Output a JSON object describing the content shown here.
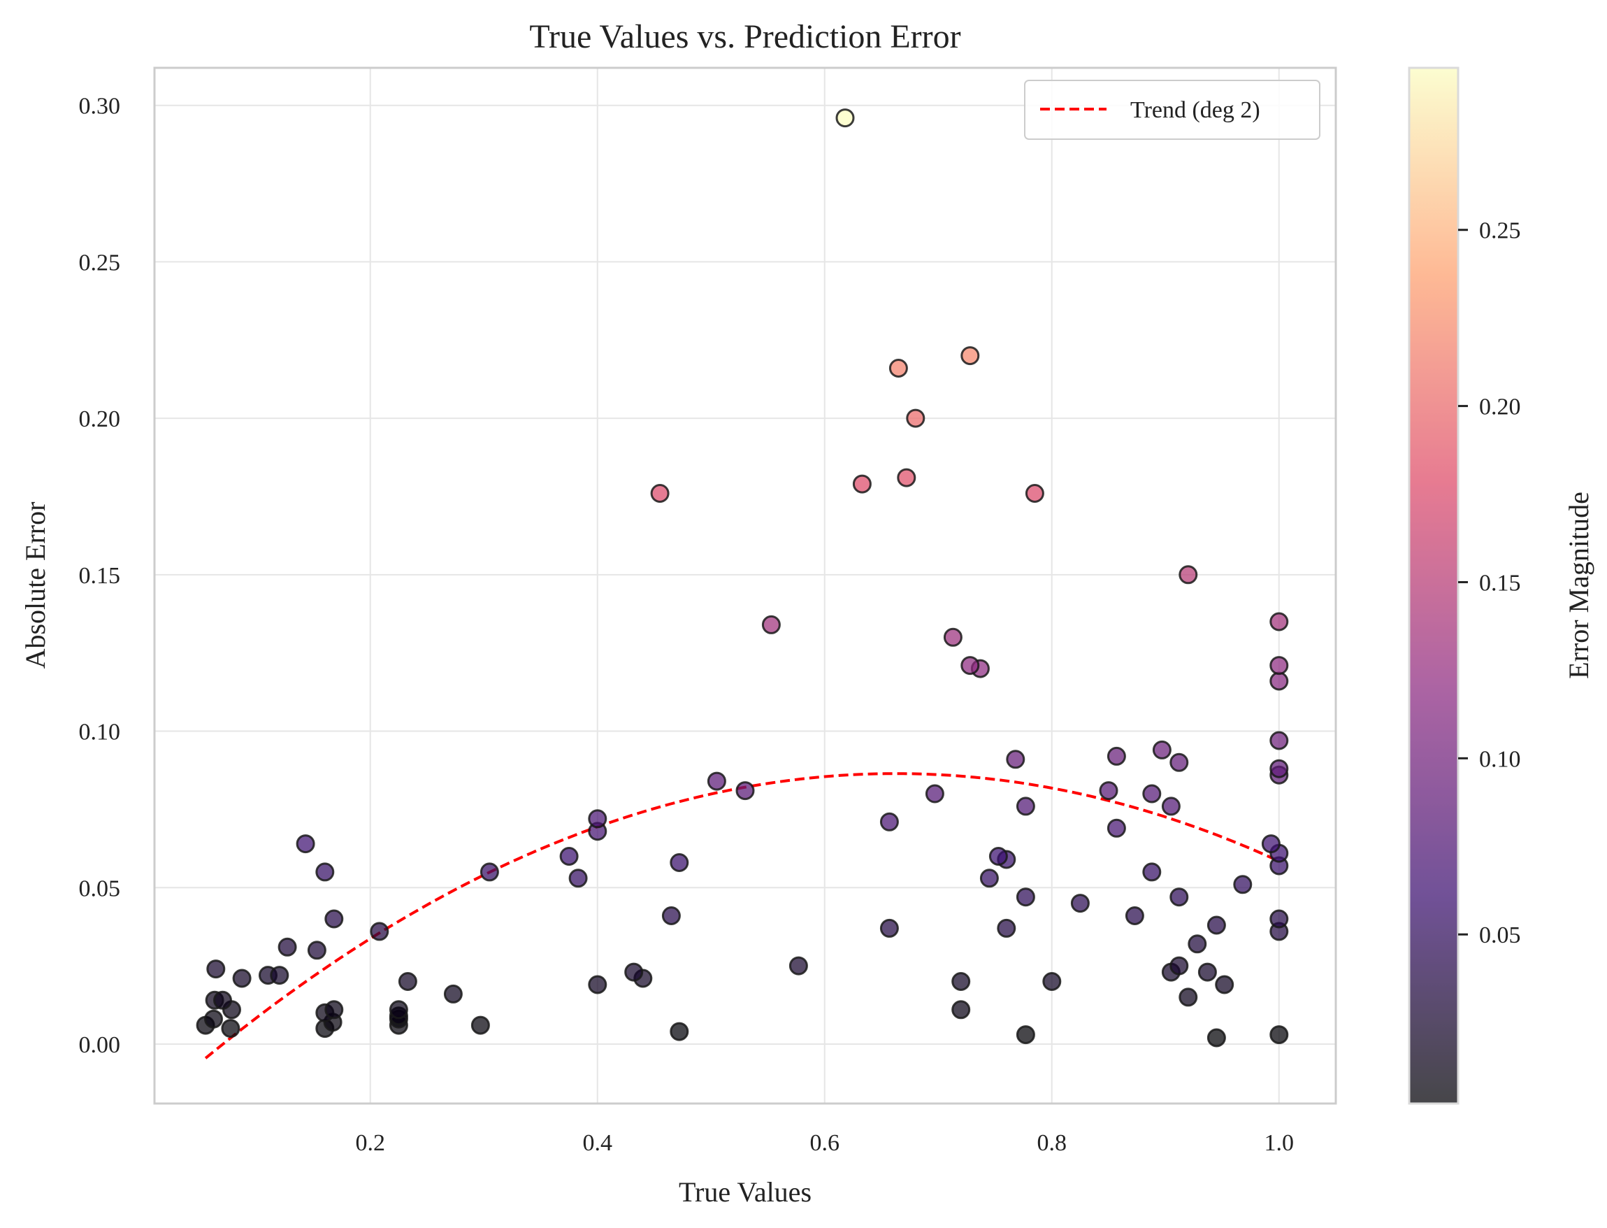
{
  "chart_data": {
    "type": "scatter",
    "title": "True Values vs. Prediction Error",
    "xlabel": "True Values",
    "ylabel": "Absolute Error",
    "xlim": [
      0.01,
      1.05
    ],
    "ylim": [
      -0.019,
      0.312
    ],
    "xticks": [
      0.2,
      0.4,
      0.6,
      0.8,
      1.0
    ],
    "xtick_labels": [
      "0.2",
      "0.4",
      "0.6",
      "0.8",
      "1.0"
    ],
    "yticks": [
      0.0,
      0.05,
      0.1,
      0.15,
      0.2,
      0.25,
      0.3
    ],
    "ytick_labels": [
      "0.00",
      "0.05",
      "0.10",
      "0.15",
      "0.20",
      "0.25",
      "0.30"
    ],
    "grid": true,
    "legend": {
      "position": "top-right",
      "entries": [
        "Trend (deg 2)"
      ]
    },
    "colorbar": {
      "label": "Error Magnitude",
      "range": [
        0.002,
        0.296
      ],
      "ticks": [
        0.05,
        0.1,
        0.15,
        0.2,
        0.25
      ],
      "tick_labels": [
        "0.05",
        "0.10",
        "0.15",
        "0.20",
        "0.25"
      ],
      "colormap": [
        "#000004",
        "#3b0f70",
        "#8c2981",
        "#de4968",
        "#fe9f6d",
        "#fcfdbf"
      ]
    },
    "trend": {
      "name": "Trend (deg 2)",
      "color": "#ff0000",
      "x_range": [
        0.055,
        1.0
      ],
      "x": [
        0.055,
        0.15,
        0.25,
        0.35,
        0.45,
        0.55,
        0.65,
        0.75,
        0.85,
        0.95,
        1.0
      ],
      "y": [
        -0.004,
        0.022,
        0.044,
        0.061,
        0.075,
        0.084,
        0.087,
        0.085,
        0.078,
        0.066,
        0.058
      ]
    },
    "points": [
      {
        "x": 0.055,
        "y": 0.006
      },
      {
        "x": 0.062,
        "y": 0.008
      },
      {
        "x": 0.063,
        "y": 0.014
      },
      {
        "x": 0.064,
        "y": 0.024
      },
      {
        "x": 0.07,
        "y": 0.014
      },
      {
        "x": 0.077,
        "y": 0.005
      },
      {
        "x": 0.078,
        "y": 0.011
      },
      {
        "x": 0.087,
        "y": 0.021
      },
      {
        "x": 0.11,
        "y": 0.022
      },
      {
        "x": 0.12,
        "y": 0.022
      },
      {
        "x": 0.127,
        "y": 0.031
      },
      {
        "x": 0.143,
        "y": 0.064
      },
      {
        "x": 0.153,
        "y": 0.03
      },
      {
        "x": 0.16,
        "y": 0.055
      },
      {
        "x": 0.16,
        "y": 0.01
      },
      {
        "x": 0.16,
        "y": 0.005
      },
      {
        "x": 0.167,
        "y": 0.007
      },
      {
        "x": 0.168,
        "y": 0.011
      },
      {
        "x": 0.168,
        "y": 0.04
      },
      {
        "x": 0.208,
        "y": 0.036
      },
      {
        "x": 0.225,
        "y": 0.011
      },
      {
        "x": 0.225,
        "y": 0.009
      },
      {
        "x": 0.225,
        "y": 0.008
      },
      {
        "x": 0.225,
        "y": 0.006
      },
      {
        "x": 0.233,
        "y": 0.02
      },
      {
        "x": 0.273,
        "y": 0.016
      },
      {
        "x": 0.297,
        "y": 0.006
      },
      {
        "x": 0.305,
        "y": 0.055
      },
      {
        "x": 0.375,
        "y": 0.06
      },
      {
        "x": 0.383,
        "y": 0.053
      },
      {
        "x": 0.4,
        "y": 0.072
      },
      {
        "x": 0.4,
        "y": 0.068
      },
      {
        "x": 0.4,
        "y": 0.019
      },
      {
        "x": 0.432,
        "y": 0.023
      },
      {
        "x": 0.44,
        "y": 0.021
      },
      {
        "x": 0.455,
        "y": 0.176
      },
      {
        "x": 0.465,
        "y": 0.041
      },
      {
        "x": 0.472,
        "y": 0.058
      },
      {
        "x": 0.472,
        "y": 0.004
      },
      {
        "x": 0.505,
        "y": 0.084
      },
      {
        "x": 0.53,
        "y": 0.081
      },
      {
        "x": 0.553,
        "y": 0.134
      },
      {
        "x": 0.577,
        "y": 0.025
      },
      {
        "x": 0.618,
        "y": 0.296
      },
      {
        "x": 0.633,
        "y": 0.179
      },
      {
        "x": 0.657,
        "y": 0.071
      },
      {
        "x": 0.657,
        "y": 0.037
      },
      {
        "x": 0.665,
        "y": 0.216
      },
      {
        "x": 0.672,
        "y": 0.181
      },
      {
        "x": 0.68,
        "y": 0.2
      },
      {
        "x": 0.697,
        "y": 0.08
      },
      {
        "x": 0.713,
        "y": 0.13
      },
      {
        "x": 0.72,
        "y": 0.02
      },
      {
        "x": 0.72,
        "y": 0.011
      },
      {
        "x": 0.728,
        "y": 0.22
      },
      {
        "x": 0.728,
        "y": 0.121
      },
      {
        "x": 0.737,
        "y": 0.12
      },
      {
        "x": 0.745,
        "y": 0.053
      },
      {
        "x": 0.753,
        "y": 0.06
      },
      {
        "x": 0.76,
        "y": 0.059
      },
      {
        "x": 0.76,
        "y": 0.037
      },
      {
        "x": 0.768,
        "y": 0.091
      },
      {
        "x": 0.777,
        "y": 0.076
      },
      {
        "x": 0.777,
        "y": 0.047
      },
      {
        "x": 0.777,
        "y": 0.003
      },
      {
        "x": 0.785,
        "y": 0.176
      },
      {
        "x": 0.8,
        "y": 0.02
      },
      {
        "x": 0.825,
        "y": 0.045
      },
      {
        "x": 0.85,
        "y": 0.081
      },
      {
        "x": 0.857,
        "y": 0.092
      },
      {
        "x": 0.857,
        "y": 0.069
      },
      {
        "x": 0.873,
        "y": 0.041
      },
      {
        "x": 0.888,
        "y": 0.08
      },
      {
        "x": 0.888,
        "y": 0.055
      },
      {
        "x": 0.897,
        "y": 0.094
      },
      {
        "x": 0.905,
        "y": 0.076
      },
      {
        "x": 0.905,
        "y": 0.023
      },
      {
        "x": 0.912,
        "y": 0.09
      },
      {
        "x": 0.912,
        "y": 0.047
      },
      {
        "x": 0.912,
        "y": 0.025
      },
      {
        "x": 0.92,
        "y": 0.15
      },
      {
        "x": 0.92,
        "y": 0.015
      },
      {
        "x": 0.928,
        "y": 0.032
      },
      {
        "x": 0.937,
        "y": 0.023
      },
      {
        "x": 0.945,
        "y": 0.038
      },
      {
        "x": 0.945,
        "y": 0.002
      },
      {
        "x": 0.952,
        "y": 0.019
      },
      {
        "x": 0.968,
        "y": 0.051
      },
      {
        "x": 0.993,
        "y": 0.064
      },
      {
        "x": 1.0,
        "y": 0.135
      },
      {
        "x": 1.0,
        "y": 0.121
      },
      {
        "x": 1.0,
        "y": 0.116
      },
      {
        "x": 1.0,
        "y": 0.097
      },
      {
        "x": 1.0,
        "y": 0.088
      },
      {
        "x": 1.0,
        "y": 0.086
      },
      {
        "x": 1.0,
        "y": 0.061
      },
      {
        "x": 1.0,
        "y": 0.057
      },
      {
        "x": 1.0,
        "y": 0.04
      },
      {
        "x": 1.0,
        "y": 0.036
      },
      {
        "x": 1.0,
        "y": 0.003
      }
    ]
  }
}
